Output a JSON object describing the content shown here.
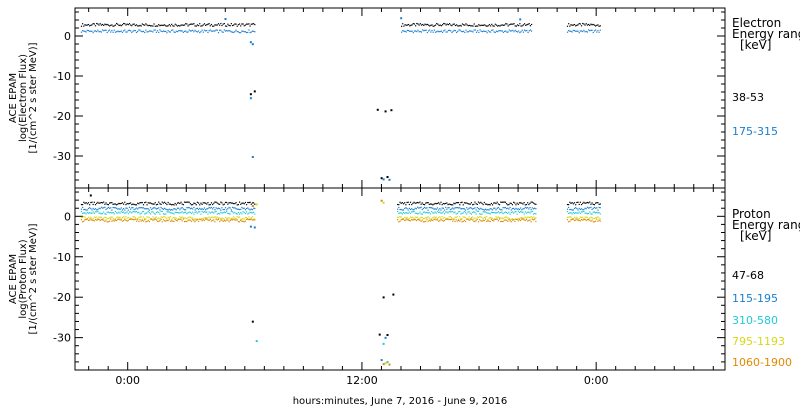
{
  "chart_data": [
    {
      "type": "scatter",
      "panel": "electron",
      "ylabel_lines": [
        "ACE EPAM",
        "log(Electron Flux)",
        "[1/(cm^2 s ster MeV)]"
      ],
      "ylim": [
        -38,
        7
      ],
      "yticks": [
        -30,
        -20,
        -10,
        0
      ],
      "legend_title_lines": [
        "Electron",
        "Energy ranges",
        "[keV]"
      ],
      "series": [
        {
          "name": "38-53",
          "color": "#000000",
          "segments": [
            {
              "x": [
                -2.4,
                6.5
              ],
              "y": 2.8
            },
            {
              "x": [
                14.0,
                20.7
              ],
              "y": 2.8
            },
            {
              "x": [
                22.5,
                24.2
              ],
              "y": 2.8
            }
          ],
          "outliers": [
            [
              6.3,
              -14.5
            ],
            [
              6.5,
              -13.8
            ],
            [
              12.8,
              -18.4
            ],
            [
              13.2,
              -18.8
            ],
            [
              13.5,
              -18.5
            ],
            [
              13.0,
              -35.5
            ],
            [
              13.3,
              -35.2
            ]
          ]
        },
        {
          "name": "175-315",
          "color": "#1a7fd0",
          "segments": [
            {
              "x": [
                -2.4,
                6.5
              ],
              "y": 1.2
            },
            {
              "x": [
                14.0,
                20.7
              ],
              "y": 1.2
            },
            {
              "x": [
                22.5,
                24.2
              ],
              "y": 1.2
            }
          ],
          "outliers": [
            [
              6.3,
              -1.5
            ],
            [
              6.4,
              -2.0
            ],
            [
              6.3,
              -15.5
            ],
            [
              6.4,
              -30.2
            ],
            [
              13.1,
              -35.8
            ],
            [
              13.4,
              -35.9
            ],
            [
              14.0,
              4.5
            ],
            [
              20.1,
              4.2
            ],
            [
              5.0,
              4.3
            ]
          ]
        }
      ]
    },
    {
      "type": "scatter",
      "panel": "proton",
      "ylabel_lines": [
        "ACE EPAM",
        "log(Proton Flux)",
        "[1/(cm^2 s ster MeV)]"
      ],
      "ylim": [
        -38,
        7
      ],
      "yticks": [
        -30,
        -20,
        -10,
        0
      ],
      "legend_title_lines": [
        "Proton",
        "Energy ranges",
        "[keV]"
      ],
      "series": [
        {
          "name": "47-68",
          "color": "#000000",
          "segments": [
            {
              "x": [
                -2.4,
                6.5
              ],
              "y": 3.2
            },
            {
              "x": [
                13.8,
                20.9
              ],
              "y": 3.2
            },
            {
              "x": [
                22.5,
                24.2
              ],
              "y": 3.2
            }
          ],
          "outliers": [
            [
              6.4,
              -26.0
            ],
            [
              12.9,
              -29.2
            ],
            [
              13.3,
              -29.3
            ],
            [
              13.1,
              -20.0
            ],
            [
              13.6,
              -19.3
            ],
            [
              -1.9,
              5.2
            ]
          ]
        },
        {
          "name": "115-195",
          "color": "#1a7fd0",
          "segments": [
            {
              "x": [
                -2.4,
                6.5
              ],
              "y": 1.9
            },
            {
              "x": [
                13.8,
                20.9
              ],
              "y": 1.9
            },
            {
              "x": [
                22.5,
                24.2
              ],
              "y": 1.9
            }
          ],
          "outliers": [
            [
              6.3,
              -2.5
            ],
            [
              6.5,
              -2.7
            ],
            [
              13.2,
              -30.0
            ],
            [
              13.0,
              -35.5
            ]
          ]
        },
        {
          "name": "310-580",
          "color": "#22c8d8",
          "segments": [
            {
              "x": [
                -2.4,
                6.5
              ],
              "y": 0.9
            },
            {
              "x": [
                13.8,
                20.9
              ],
              "y": 0.9
            },
            {
              "x": [
                22.5,
                24.2
              ],
              "y": 0.9
            }
          ],
          "outliers": [
            [
              6.6,
              -30.8
            ],
            [
              13.1,
              -31.5
            ],
            [
              13.3,
              -36.0
            ]
          ]
        },
        {
          "name": "795-1193",
          "color": "#d8d818",
          "segments": [
            {
              "x": [
                -2.4,
                6.5
              ],
              "y": -0.4
            },
            {
              "x": [
                13.8,
                20.9
              ],
              "y": -0.4
            },
            {
              "x": [
                22.5,
                24.2
              ],
              "y": -0.4
            }
          ],
          "outliers": [
            [
              13.1,
              3.4
            ],
            [
              13.2,
              -36.3
            ],
            [
              6.6,
              3.0
            ]
          ]
        },
        {
          "name": "1060-1900",
          "color": "#e08a00",
          "segments": [
            {
              "x": [
                -2.4,
                6.5
              ],
              "y": -1.0
            },
            {
              "x": [
                13.8,
                20.9
              ],
              "y": -1.0
            },
            {
              "x": [
                22.5,
                24.2
              ],
              "y": -1.0
            }
          ],
          "outliers": [
            [
              13.0,
              3.9
            ],
            [
              13.1,
              -36.5
            ],
            [
              13.4,
              -36.6
            ],
            [
              6.4,
              2.6
            ]
          ]
        }
      ]
    }
  ],
  "x_axis": {
    "xlim": [
      -2.7,
      30.6
    ],
    "ticks": [
      0,
      12,
      24
    ],
    "tick_labels": [
      "0:00",
      "12:00",
      "0:00"
    ],
    "minor_step": 1,
    "label": "hours:minutes, June  7, 2016 - June  9, 2016"
  }
}
